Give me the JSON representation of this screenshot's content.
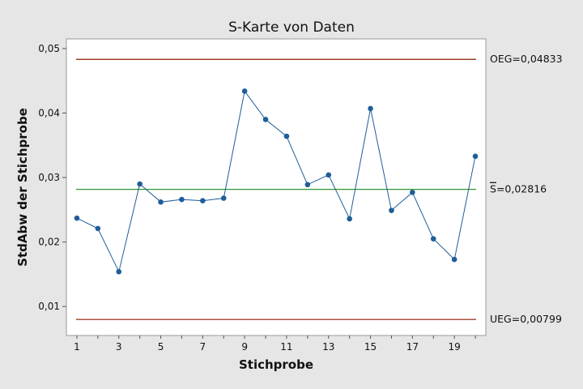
{
  "chart_data": {
    "type": "line",
    "title": "S-Karte von Daten",
    "xlabel": "Stichprobe",
    "ylabel": "StdAbw der Stichprobe",
    "x": [
      1,
      2,
      3,
      4,
      5,
      6,
      7,
      8,
      9,
      10,
      11,
      12,
      13,
      14,
      15,
      16,
      17,
      18,
      19,
      20
    ],
    "values": [
      0.0237,
      0.0221,
      0.0154,
      0.029,
      0.0262,
      0.0266,
      0.0264,
      0.0268,
      0.0434,
      0.039,
      0.0364,
      0.0289,
      0.0304,
      0.0236,
      0.0407,
      0.0249,
      0.0277,
      0.0205,
      0.0173,
      0.0333
    ],
    "xlim": [
      0.5,
      20.5
    ],
    "ylim": [
      0.0055,
      0.0515
    ],
    "x_ticks": [
      1,
      3,
      5,
      7,
      9,
      11,
      13,
      15,
      17,
      19
    ],
    "x_tick_labels": [
      "1",
      "3",
      "5",
      "7",
      "9",
      "11",
      "13",
      "15",
      "17",
      "19"
    ],
    "y_ticks": [
      0.01,
      0.02,
      0.03,
      0.04,
      0.05
    ],
    "y_tick_labels": [
      "0,01",
      "0,02",
      "0,03",
      "0,04",
      "0,05"
    ],
    "limits": {
      "ucl": {
        "value": 0.04833,
        "label": "OEG=0,04833",
        "color": "#8b1a00"
      },
      "center": {
        "value": 0.02816,
        "label_symbol": "S",
        "label_rest": "=0,02816",
        "color": "#1a8a1a"
      },
      "lcl": {
        "value": 0.00799,
        "label": "UEG=0,00799",
        "color": "#8b1a00"
      }
    },
    "grid": false,
    "colors": {
      "series": "#1f5d99",
      "background": "#e6e6e6",
      "plot_area": "#ffffff"
    }
  }
}
